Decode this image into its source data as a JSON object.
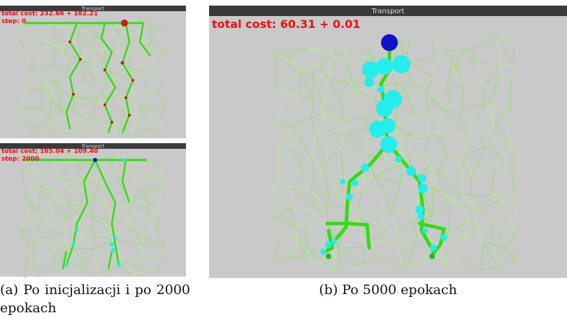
{
  "windows": [
    {
      "title": "Transport",
      "total_cost": "total cost: 232.66 + 162.21",
      "step": "step: 0"
    },
    {
      "title": "Transport",
      "total_cost": "total cost: 165.04 + 109.40",
      "step": "step: 2000"
    },
    {
      "title": "Transport",
      "total_cost": "total cost: 60.31 + 0.01"
    }
  ],
  "captions": {
    "a": "(a) Po inicjalizacji i po 2000 epokach",
    "b": "(b) Po 5000 epokach"
  }
}
